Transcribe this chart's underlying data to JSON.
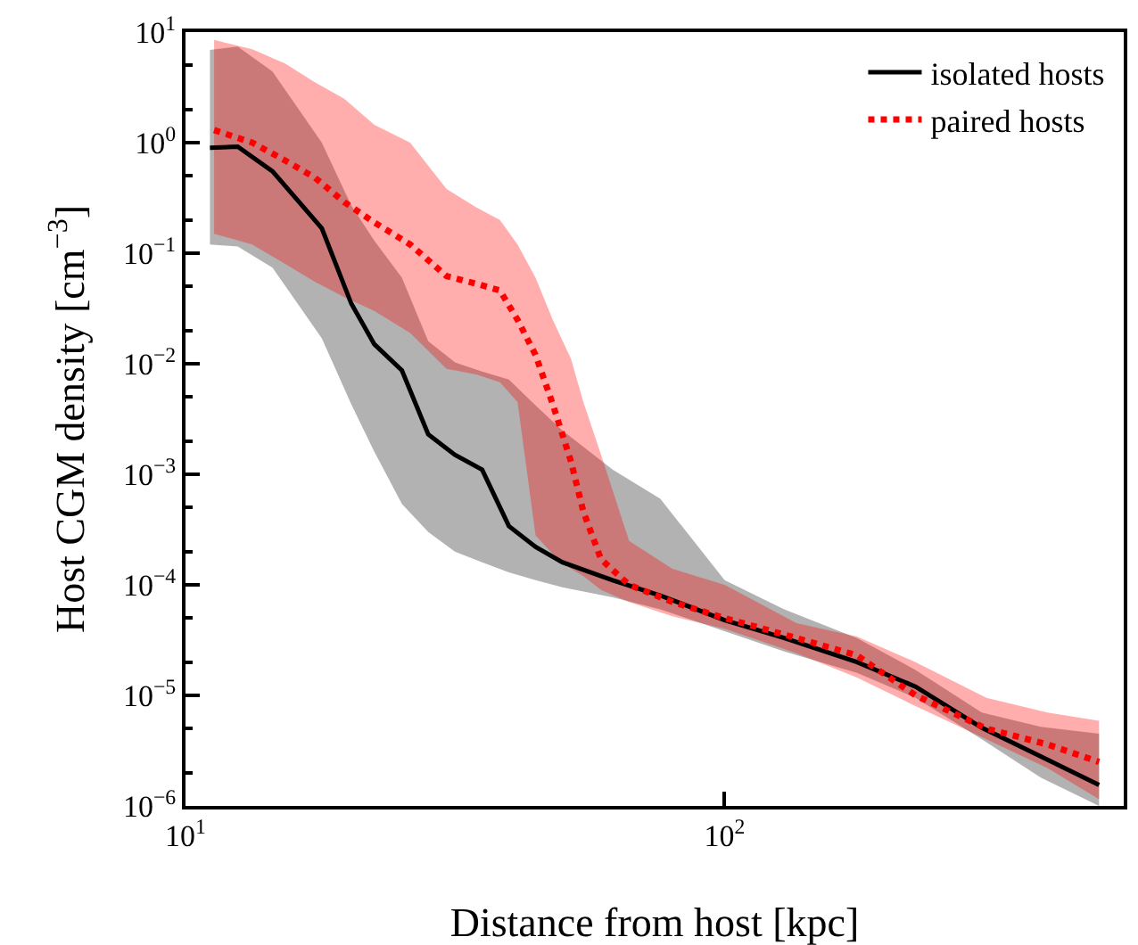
{
  "chart_data": {
    "type": "line",
    "xlabel": "Distance from host [kpc]",
    "ylabel": "Host CGM density [cm$^{−3}$]",
    "log": "xy",
    "grid": false,
    "legend": "top right",
    "xlim": [
      10,
      550
    ],
    "ylim": [
      1e-06,
      10
    ],
    "xticks": [
      {
        "value": 10,
        "label": "10$^{1}$"
      },
      {
        "value": 100,
        "label": "10$^{2}$"
      }
    ],
    "yticks": [
      {
        "value": 1e-06,
        "label": "10$^{−6}$"
      },
      {
        "value": 1e-05,
        "label": "10$^{−5}$"
      },
      {
        "value": 0.0001,
        "label": "10$^{−4}$"
      },
      {
        "value": 0.001,
        "label": "10$^{−3}$"
      },
      {
        "value": 0.01,
        "label": "10$^{−2}$"
      },
      {
        "value": 0.1,
        "label": "10$^{−1}$"
      },
      {
        "value": 1,
        "label": "10$^{0}$"
      },
      {
        "value": 10,
        "label": "10$^{1}$"
      }
    ],
    "series": [
      {
        "name": "isolated hosts",
        "color": "#000000",
        "line_style": "solid",
        "x": [
          11.1,
          12.5,
          14.5,
          17.9,
          20.3,
          22.4,
          25.2,
          28.2,
          31.6,
          35.5,
          39.8,
          44.6,
          50,
          62,
          76,
          100,
          129,
          176,
          226,
          300,
          386,
          495
        ],
        "values": [
          0.9,
          0.92,
          0.55,
          0.168,
          0.035,
          0.015,
          0.0087,
          0.0023,
          0.0015,
          0.0011,
          0.00034,
          0.00022,
          0.00016,
          0.00011,
          8e-05,
          4.8e-05,
          3.3e-05,
          2e-05,
          1.2e-05,
          5.1e-06,
          2.8e-06,
          1.55e-06
        ],
        "upper": [
          6.9,
          7.4,
          4.4,
          1.0,
          0.27,
          0.13,
          0.06,
          0.016,
          0.0103,
          0.0085,
          0.0072,
          0.0042,
          0.0025,
          0.0011,
          0.0006,
          0.00011,
          6e-05,
          3.3e-05,
          1.7e-05,
          7e-06,
          5.2e-06,
          4.5e-06
        ],
        "lower": [
          0.12,
          0.115,
          0.074,
          0.017,
          0.0043,
          0.0016,
          0.00054,
          0.0003,
          0.0002,
          0.00016,
          0.00013,
          0.00011,
          9.5e-05,
          7.7e-05,
          6e-05,
          3.8e-05,
          2.5e-05,
          1.6e-05,
          9.5e-06,
          4e-06,
          1.8e-06,
          1e-06
        ]
      },
      {
        "name": "paired hosts",
        "color": "#ff0000",
        "line_style": "dotted",
        "x": [
          11.3,
          13.3,
          15.3,
          17.4,
          19.7,
          22.4,
          26.1,
          30.5,
          34.6,
          38.3,
          41.3,
          44.6,
          48,
          51.9,
          54.7,
          59,
          66.5,
          80,
          100,
          136,
          176,
          226,
          306,
          397,
          495
        ],
        "values": [
          1.3,
          1.0,
          0.69,
          0.48,
          0.29,
          0.19,
          0.12,
          0.062,
          0.053,
          0.046,
          0.025,
          0.012,
          0.0043,
          0.0013,
          0.00046,
          0.00017,
          0.0001,
          7e-05,
          5e-05,
          3.3e-05,
          2.3e-05,
          1e-05,
          5e-06,
          3.6e-06,
          2.5e-06
        ],
        "upper": [
          8.5,
          7,
          5.2,
          3.5,
          2.5,
          1.45,
          1.0,
          0.38,
          0.26,
          0.2,
          0.12,
          0.06,
          0.025,
          0.011,
          0.0045,
          0.0015,
          0.00025,
          0.00014,
          0.0001,
          4.5e-05,
          3.4e-05,
          2e-05,
          9.5e-06,
          7e-06,
          5.9e-06
        ],
        "lower": [
          0.15,
          0.12,
          0.08,
          0.055,
          0.04,
          0.03,
          0.019,
          0.009,
          0.008,
          0.0068,
          0.0045,
          0.00028,
          0.00019,
          0.00014,
          0.00012,
          9e-05,
          7e-05,
          5.2e-05,
          4e-05,
          2.4e-05,
          1.45e-05,
          8e-06,
          4e-06,
          2.2e-06,
          1.15e-06
        ]
      }
    ]
  }
}
